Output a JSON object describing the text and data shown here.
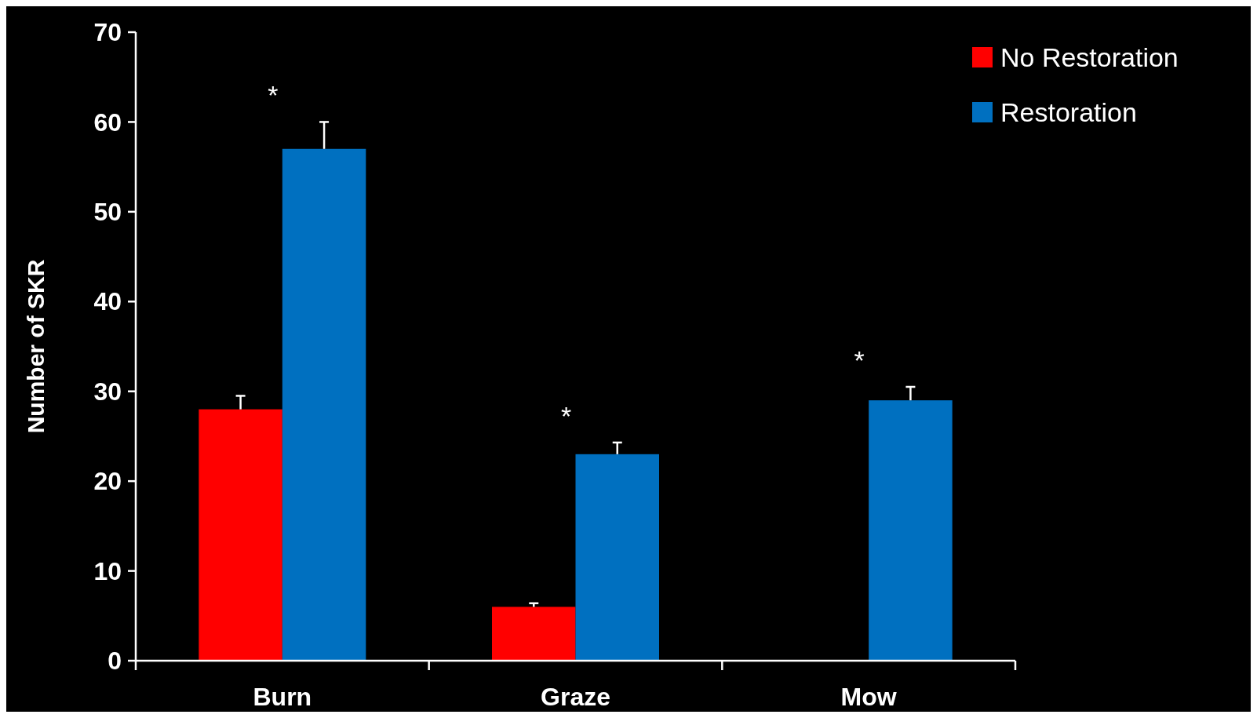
{
  "chart_data": {
    "type": "bar",
    "ylabel": "Number of SKR",
    "categories": [
      "Burn",
      "Graze",
      "Mow"
    ],
    "series": [
      {
        "name": "No Restoration",
        "color": "#ff0000",
        "values": [
          28,
          6,
          null
        ],
        "errors": [
          [
            28,
            29.5
          ],
          [
            6,
            6.4
          ],
          null
        ]
      },
      {
        "name": "Restoration",
        "color": "#0070c0",
        "values": [
          57,
          23,
          29
        ],
        "errors": [
          [
            57,
            60
          ],
          [
            23,
            24.3
          ],
          [
            29,
            30.5
          ]
        ]
      }
    ],
    "ylim": [
      0,
      70
    ],
    "yticks": [
      0,
      10,
      20,
      30,
      40,
      50,
      60,
      70
    ],
    "legend": "top right",
    "annotations": [
      "*",
      "*",
      "*"
    ]
  }
}
